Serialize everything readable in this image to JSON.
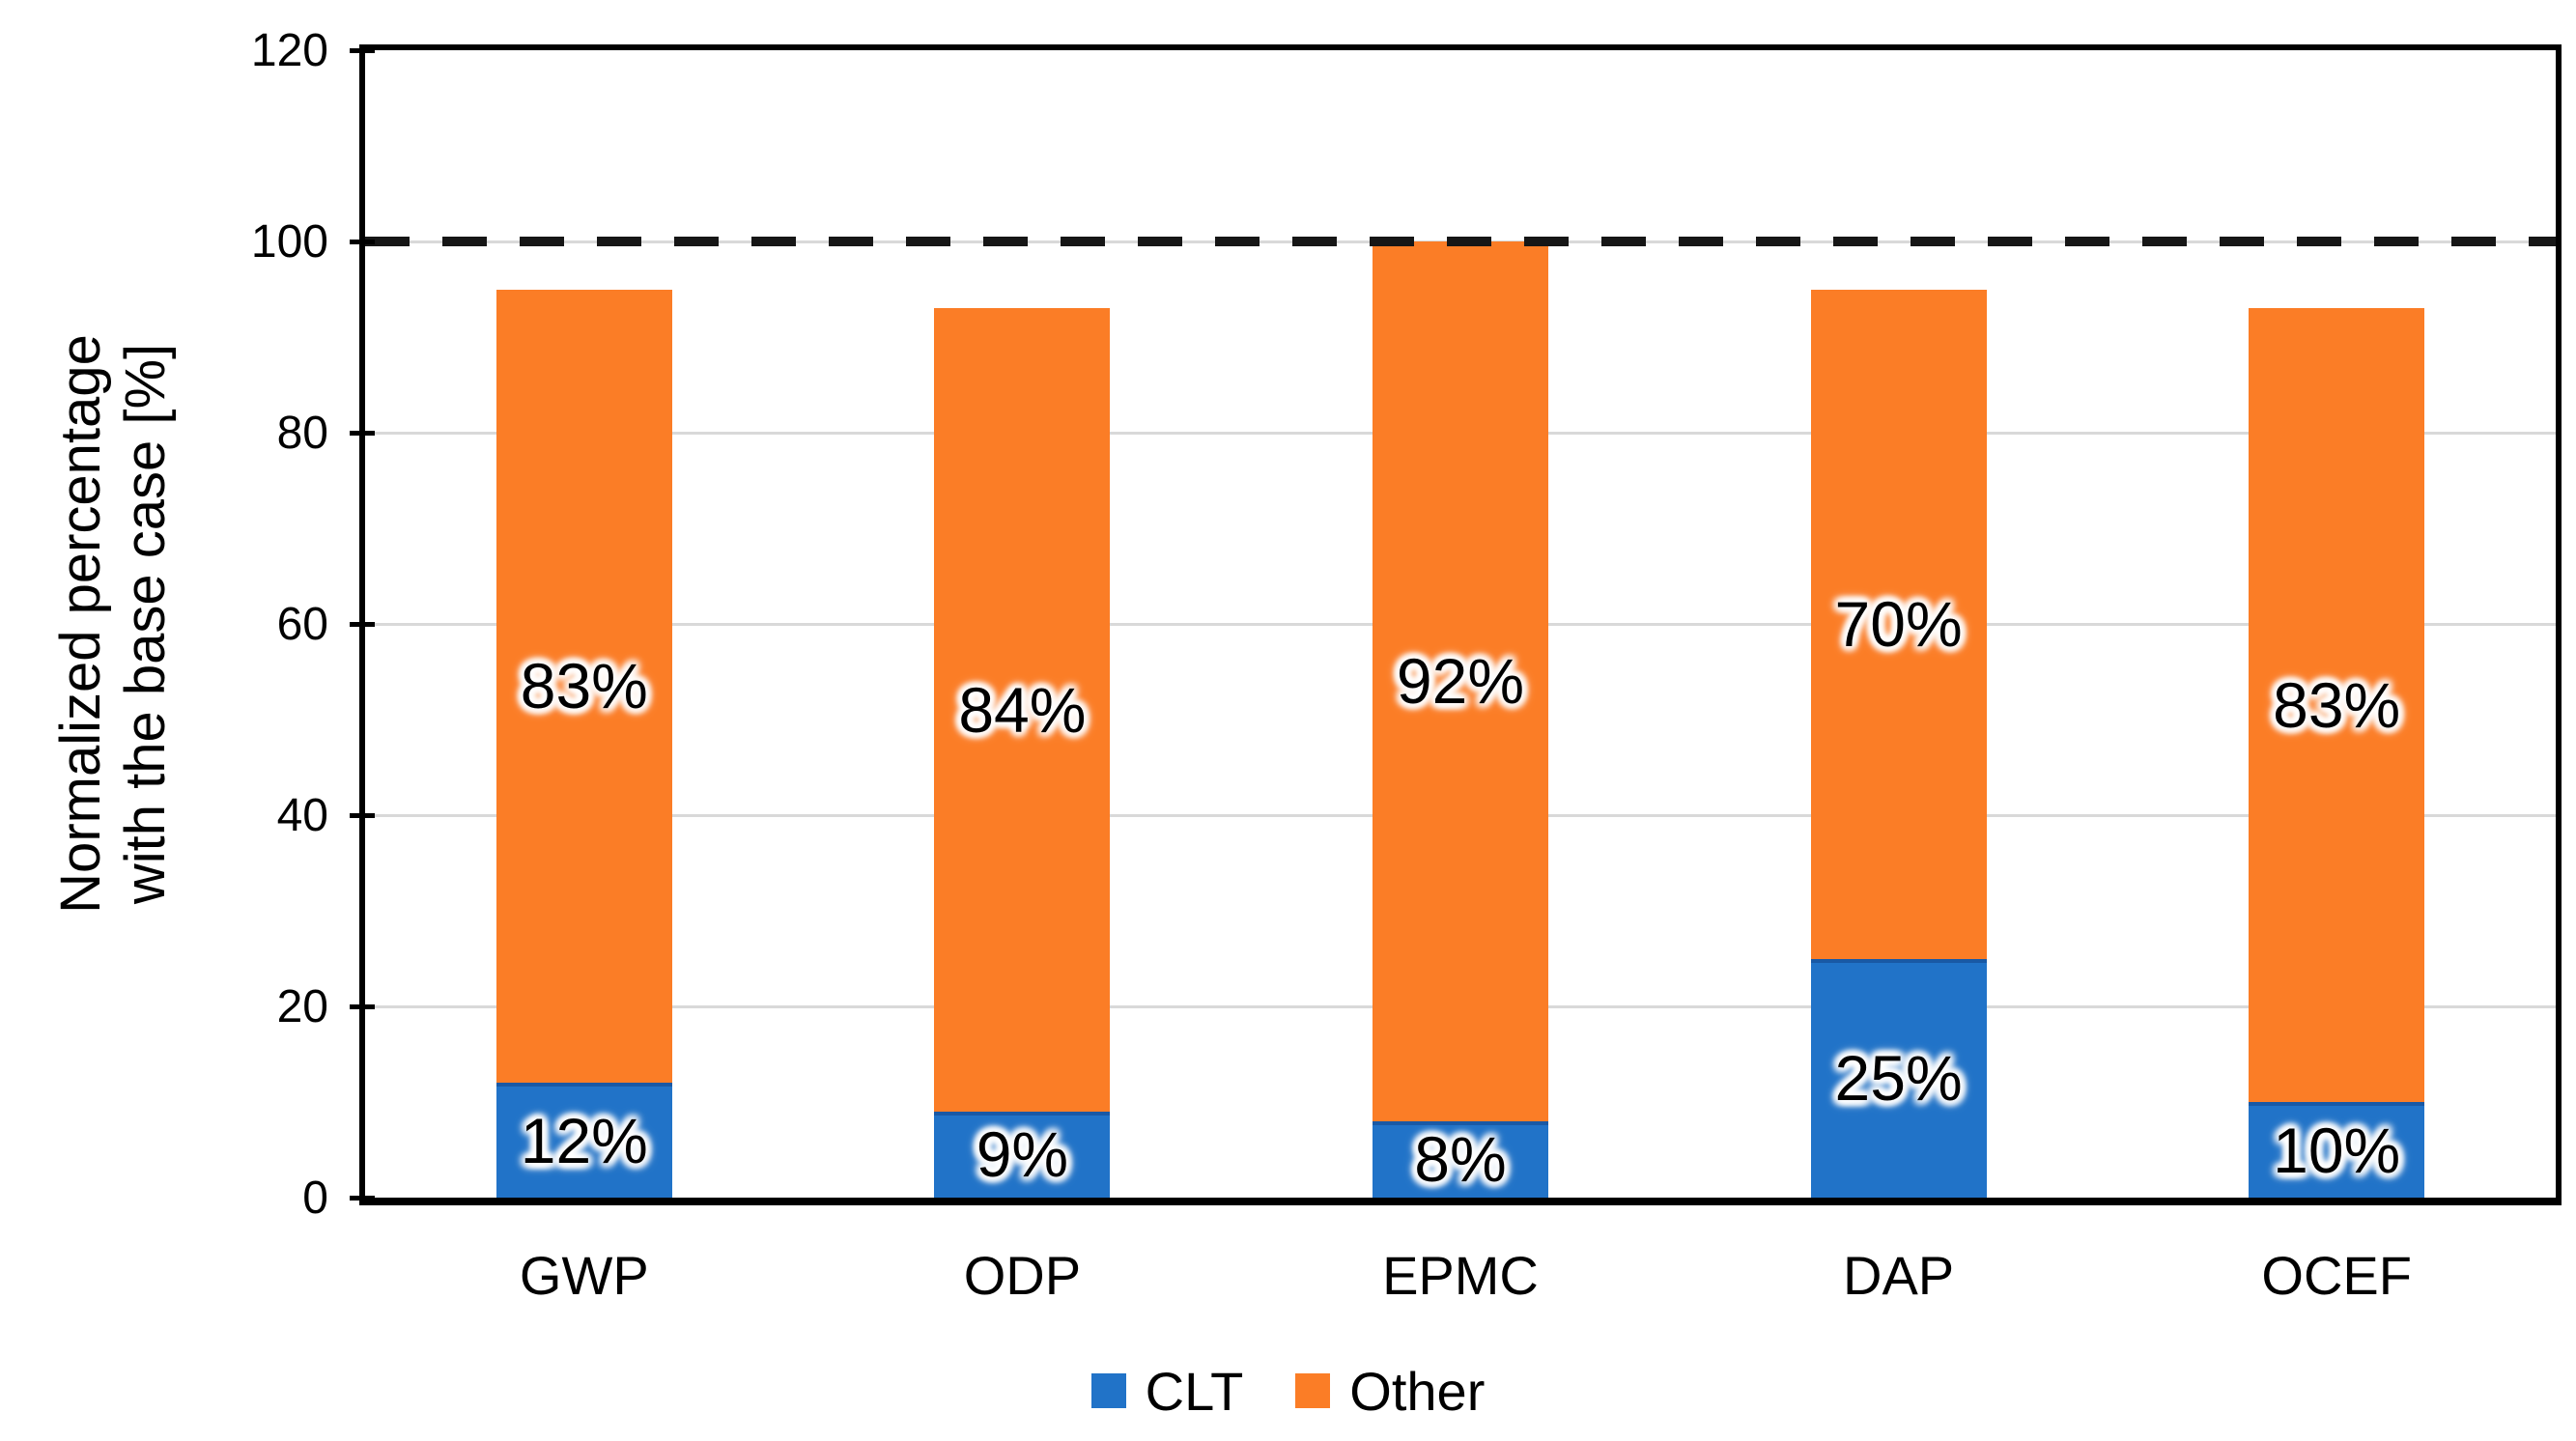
{
  "chart_data": {
    "type": "bar",
    "stacked": true,
    "categories": [
      "GWP",
      "ODP",
      "EPMC",
      "DAP",
      "OCEF"
    ],
    "series": [
      {
        "name": "CLT",
        "color": "#2173C8",
        "values": [
          12,
          9,
          8,
          25,
          10
        ],
        "labels": [
          "12%",
          "9%",
          "8%",
          "25%",
          "10%"
        ]
      },
      {
        "name": "Other",
        "color": "#FB7D26",
        "values": [
          83,
          84,
          92,
          70,
          83
        ],
        "labels": [
          "83%",
          "84%",
          "92%",
          "70%",
          "83%"
        ]
      }
    ],
    "totals": [
      95,
      93,
      100,
      95,
      93
    ],
    "ylabel_line1": "Normalized percentage",
    "ylabel_line2": "with the base case [%]",
    "xlabel": "",
    "title": "",
    "ylim": [
      0,
      120
    ],
    "yticks": [
      0,
      20,
      40,
      60,
      80,
      100,
      120
    ],
    "reference_line": 100,
    "grid": "horizontal",
    "gridline_color": "#D9D9D9",
    "reference_line_color": "#161616",
    "axis_color": "#000000",
    "background": "#FFFFFF",
    "legend_position": "bottom"
  }
}
